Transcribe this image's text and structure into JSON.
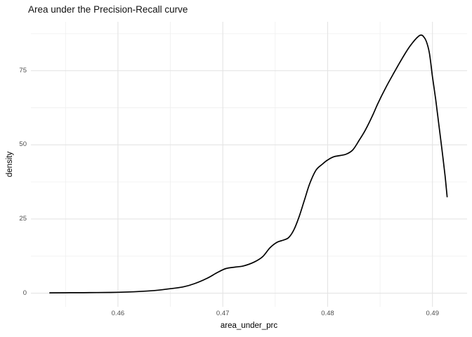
{
  "page": {
    "background": "#ffffff"
  },
  "chart_data": {
    "type": "line",
    "subtype": "density-curve",
    "title": "Area under the Precision-Recall curve",
    "xlabel": "area_under_prc",
    "ylabel": "density",
    "xlim": [
      0.4517,
      0.4933
    ],
    "ylim": [
      -4.6,
      91.5
    ],
    "grid": "on",
    "legend": "none",
    "x_ticks": [
      {
        "value": 0.46,
        "label": "0.46"
      },
      {
        "value": 0.47,
        "label": "0.47"
      },
      {
        "value": 0.48,
        "label": "0.48"
      },
      {
        "value": 0.49,
        "label": "0.49"
      }
    ],
    "y_ticks": [
      {
        "value": 0,
        "label": "0"
      },
      {
        "value": 25,
        "label": "25"
      },
      {
        "value": 50,
        "label": "50"
      },
      {
        "value": 75,
        "label": "75"
      }
    ],
    "x_minor": [
      0.455,
      0.465,
      0.475,
      0.485
    ],
    "y_minor": [
      12.5,
      37.5,
      62.5,
      87.5
    ],
    "series": [
      {
        "name": "density",
        "x": [
          0.4535,
          0.4555,
          0.458,
          0.46,
          0.462,
          0.4635,
          0.465,
          0.4662,
          0.4673,
          0.4685,
          0.4695,
          0.4703,
          0.4712,
          0.472,
          0.473,
          0.4738,
          0.4745,
          0.4752,
          0.4758,
          0.4763,
          0.4768,
          0.4773,
          0.4778,
          0.4783,
          0.4789,
          0.4795,
          0.48,
          0.4806,
          0.4812,
          0.4818,
          0.4824,
          0.483,
          0.4836,
          0.4843,
          0.4848,
          0.4855,
          0.4862,
          0.487,
          0.4877,
          0.4883,
          0.4887,
          0.4889,
          0.4891,
          0.4894,
          0.4897,
          0.49,
          0.4903,
          0.4906,
          0.4909,
          0.4912,
          0.4914
        ],
        "y": [
          0.1,
          0.15,
          0.2,
          0.3,
          0.55,
          0.9,
          1.5,
          2.1,
          3.2,
          5.0,
          7.0,
          8.3,
          8.8,
          9.2,
          10.5,
          12.3,
          15.3,
          17.2,
          17.9,
          18.8,
          21.5,
          26.0,
          31.5,
          37.0,
          41.5,
          43.5,
          44.9,
          46.0,
          46.4,
          46.9,
          48.3,
          51.5,
          55.0,
          60.0,
          64.0,
          69.0,
          73.5,
          78.5,
          82.5,
          85.3,
          86.7,
          87.0,
          86.7,
          85.0,
          81.0,
          73.0,
          65.5,
          57.0,
          48.5,
          39.5,
          32.5
        ]
      }
    ],
    "colors": {
      "line": "#000000",
      "grid_major": "#e4e4e4",
      "grid_minor": "#f0f0f0",
      "tick_label": "#4d4d4d",
      "text": "#111111",
      "panel_background": "#ffffff"
    }
  }
}
